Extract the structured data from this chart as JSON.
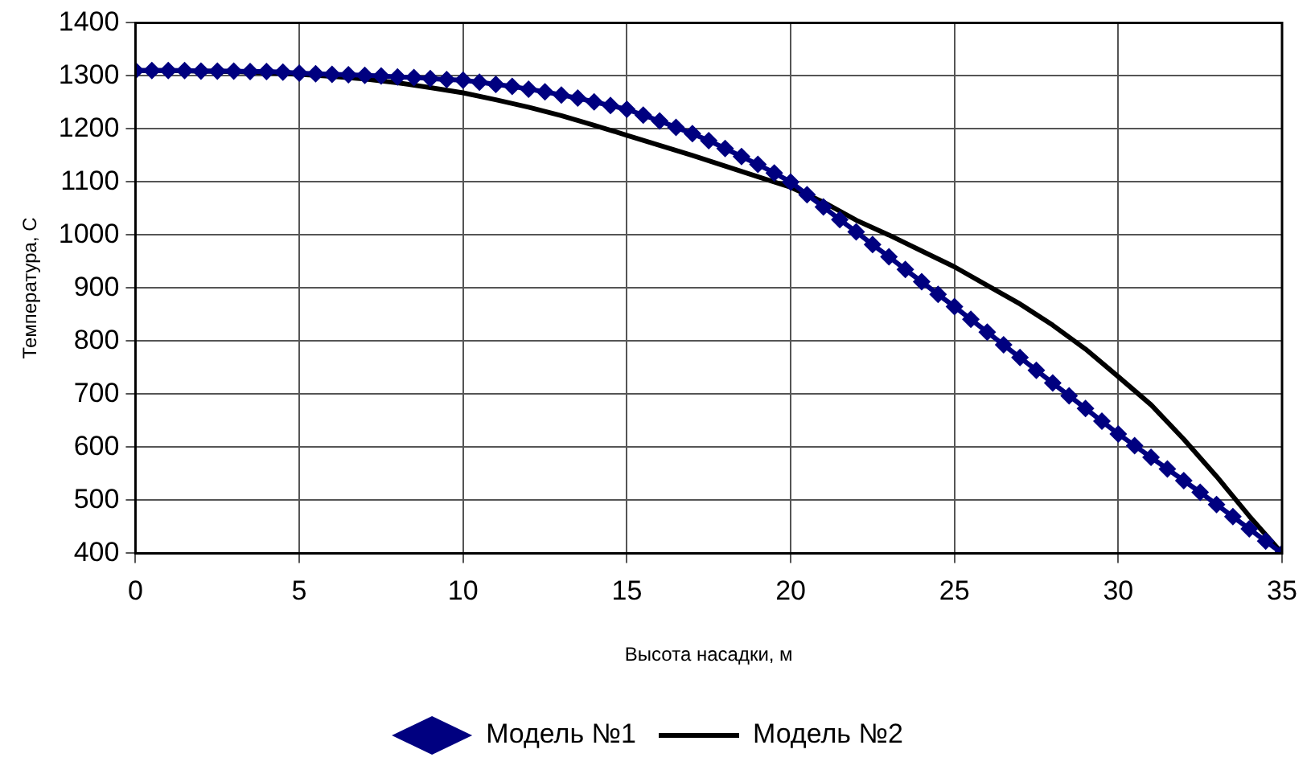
{
  "chart_data": {
    "type": "line",
    "xlabel": "Высота насадки, м",
    "ylabel": "Температура, С",
    "xlim": [
      0,
      35
    ],
    "xticks": [
      0,
      5,
      10,
      15,
      20,
      25,
      30,
      35
    ],
    "ylim": [
      400,
      1400
    ],
    "yticks": [
      400,
      500,
      600,
      700,
      800,
      900,
      1000,
      1100,
      1200,
      1300,
      1400
    ],
    "grid": true,
    "legend": "bottom",
    "line_style": "solid",
    "series": [
      {
        "name": "Модель №1",
        "color": "#000080",
        "marker": "diamond",
        "x": [
          0,
          0.5,
          1,
          1.5,
          2,
          2.5,
          3,
          3.5,
          4,
          4.5,
          5,
          5.5,
          6,
          6.5,
          7,
          7.5,
          8,
          8.5,
          9,
          9.5,
          10,
          10.5,
          11,
          11.5,
          12,
          12.5,
          13,
          13.5,
          14,
          14.5,
          15,
          15.5,
          16,
          16.5,
          17,
          17.5,
          18,
          18.5,
          19,
          19.5,
          20,
          20.5,
          21,
          21.5,
          22,
          22.5,
          23,
          23.5,
          24,
          24.5,
          25,
          25.5,
          26,
          26.5,
          27,
          27.5,
          28,
          28.5,
          29,
          29.5,
          30,
          30.5,
          31,
          31.5,
          32,
          32.5,
          33,
          33.5,
          34,
          34.5,
          35
        ],
        "values": [
          1310,
          1310,
          1310,
          1310,
          1309,
          1309,
          1309,
          1308,
          1308,
          1307,
          1305,
          1304,
          1303,
          1302,
          1301,
          1300,
          1298,
          1297,
          1295,
          1293,
          1292,
          1288,
          1284,
          1280,
          1275,
          1270,
          1264,
          1258,
          1251,
          1244,
          1237,
          1226,
          1215,
          1203,
          1191,
          1178,
          1163,
          1148,
          1133,
          1117,
          1100,
          1076,
          1053,
          1029,
          1006,
          982,
          959,
          935,
          912,
          888,
          865,
          841,
          817,
          793,
          769,
          745,
          721,
          697,
          673,
          649,
          625,
          603,
          581,
          559,
          537,
          515,
          492,
          469,
          446,
          423,
          400
        ]
      },
      {
        "name": "Модель №2",
        "color": "#000000",
        "marker": "none",
        "x": [
          0,
          1,
          2,
          3,
          4,
          5,
          6,
          7,
          8,
          9,
          10,
          11,
          12,
          13,
          14,
          15,
          16,
          17,
          18,
          19,
          20,
          21,
          22,
          23,
          24,
          25,
          26,
          27,
          28,
          29,
          30,
          31,
          32,
          33,
          34,
          35
        ],
        "values": [
          1310,
          1310,
          1309,
          1308,
          1306,
          1303,
          1299,
          1294,
          1287,
          1278,
          1268,
          1255,
          1241,
          1225,
          1207,
          1188,
          1169,
          1150,
          1130,
          1110,
          1090,
          1062,
          1028,
          1000,
          970,
          940,
          905,
          870,
          830,
          785,
          733,
          680,
          615,
          545,
          470,
          400
        ]
      }
    ]
  }
}
